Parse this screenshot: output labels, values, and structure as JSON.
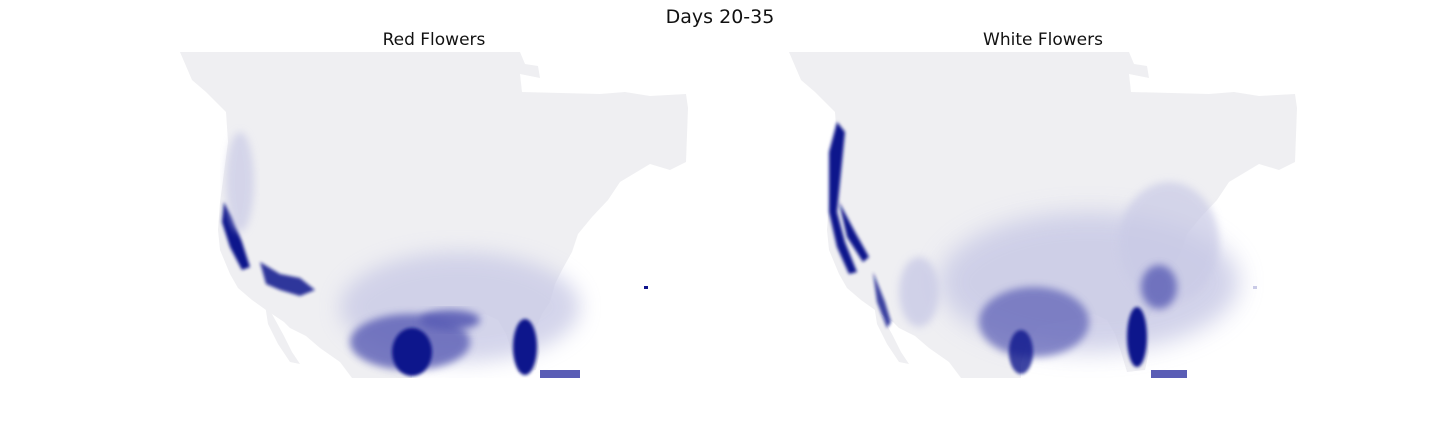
{
  "figure": {
    "title": "Days 20-35"
  },
  "panels": [
    {
      "title": "Red Flowers"
    },
    {
      "title": "White Flowers"
    }
  ],
  "colors": {
    "land": "#efeff2",
    "intensity_high": "#10148c",
    "intensity_mid": "#5a5db5",
    "intensity_low": "#c9cae6",
    "background": "#ffffff"
  }
}
